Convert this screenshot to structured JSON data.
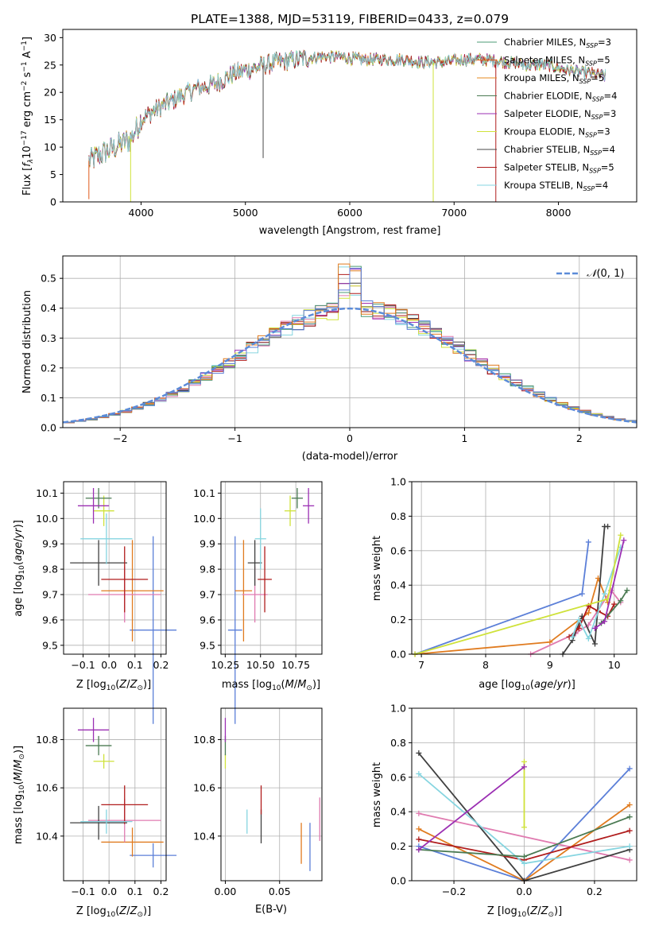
{
  "figure_title": "PLATE=1388, MJD=53119, FIBERID=0433, z=0.079",
  "model_colors": [
    "#4c9b74",
    "#e05a1a",
    "#e58a1f",
    "#4a7a52",
    "#9b2fb3",
    "#cfe23a",
    "#4a4a4a",
    "#b01c1c",
    "#86d5e0"
  ],
  "chart_data": [
    {
      "id": "spectrum",
      "type": "line",
      "title": "PLATE=1388, MJD=53119, FIBERID=0433, z=0.079",
      "xlabel": "wavelength [Angstrom, rest frame]",
      "ylabel": "Flux [f_λ 10^-17 erg cm^-2 s^-1 A^-1]",
      "xlim": [
        3250,
        8750
      ],
      "ylim": [
        0,
        31.5
      ],
      "xticks": [
        4000,
        5000,
        6000,
        7000,
        8000
      ],
      "yticks": [
        0,
        5,
        10,
        15,
        20,
        25,
        30
      ],
      "legend_position": "top-right",
      "grid": false,
      "anchors_x": [
        3500,
        3650,
        3800,
        3900,
        4000,
        4150,
        4300,
        4500,
        4700,
        4900,
        5100,
        5300,
        5500,
        5700,
        5900,
        6100,
        6300,
        6500,
        6700,
        6900,
        7100,
        7300,
        7500,
        7700,
        7900,
        8100,
        8300,
        8450
      ],
      "anchors_y": [
        7.5,
        9.0,
        10.5,
        11.5,
        15.0,
        17.0,
        18.5,
        20.5,
        21.5,
        23.5,
        24.5,
        25.5,
        26.0,
        26.5,
        26.5,
        26.0,
        26.0,
        26.0,
        25.5,
        25.5,
        26.0,
        26.0,
        25.5,
        25.0,
        25.0,
        24.0,
        23.5,
        23.0
      ],
      "series": [
        {
          "name": "Chabrier MILES, N_SSP=3"
        },
        {
          "name": "Salpeter MILES, N_SSP=5"
        },
        {
          "name": "Kroupa MILES, N_SSP=5"
        },
        {
          "name": "Chabrier ELODIE, N_SSP=4"
        },
        {
          "name": "Salpeter ELODIE, N_SSP=3"
        },
        {
          "name": "Kroupa ELODIE, N_SSP=3"
        },
        {
          "name": "Chabrier STELIB, N_SSP=4"
        },
        {
          "name": "Salpeter STELIB, N_SSP=5"
        },
        {
          "name": "Kroupa STELIB, N_SSP=4"
        }
      ],
      "legend_entries": [
        {
          "pre": "Chabrier MILES, N",
          "sub": "SSP",
          "post": "=3"
        },
        {
          "pre": "Salpeter MILES, N",
          "sub": "SSP",
          "post": "=5"
        },
        {
          "pre": "Kroupa MILES, N",
          "sub": "SSP",
          "post": "=5"
        },
        {
          "pre": "Chabrier ELODIE, N",
          "sub": "SSP",
          "post": "=4"
        },
        {
          "pre": "Salpeter ELODIE, N",
          "sub": "SSP",
          "post": "=3"
        },
        {
          "pre": "Kroupa ELODIE, N",
          "sub": "SSP",
          "post": "=3"
        },
        {
          "pre": "Chabrier STELIB, N",
          "sub": "SSP",
          "post": "=4"
        },
        {
          "pre": "Salpeter STELIB, N",
          "sub": "SSP",
          "post": "=5"
        },
        {
          "pre": "Kroupa STELIB, N",
          "sub": "SSP",
          "post": "=4"
        }
      ]
    },
    {
      "id": "residuals",
      "type": "bar",
      "xlabel": "(data-model)/error",
      "ylabel": "Normed distribution",
      "xlim": [
        -2.5,
        2.5
      ],
      "ylim": [
        0,
        0.575
      ],
      "xticks": [
        -2,
        -1,
        0,
        1,
        2
      ],
      "yticks": [
        0.0,
        0.1,
        0.2,
        0.3,
        0.4,
        0.5
      ],
      "grid": true,
      "legend_position": "top-right",
      "bin_width": 0.1,
      "reference_curve": {
        "name": "N(0,1)",
        "mean": 0,
        "sigma": 1
      }
    },
    {
      "id": "age-vs-Z",
      "type": "scatter",
      "xlabel": "Z [log10(Z/Z☉)]",
      "ylabel": "age [log10(age/yr)]",
      "xlim": [
        -0.175,
        0.22
      ],
      "ylim": [
        9.465,
        10.145
      ],
      "xticks": [
        -0.1,
        0.0,
        0.1,
        0.2
      ],
      "xtick_labels": [
        "−0.1",
        "0.0",
        "0.1",
        "0.2"
      ],
      "yticks": [
        9.5,
        9.6,
        9.7,
        9.8,
        9.9,
        10.0,
        10.1
      ],
      "points": [
        {
          "x": 0.17,
          "y": 9.56,
          "xerr": 0.09,
          "yerr": 0.37,
          "c": "#5b7fd8"
        },
        {
          "x": 0.09,
          "y": 9.715,
          "xerr": 0.12,
          "yerr": 0.2,
          "c": "#e07b1f"
        },
        {
          "x": 0.06,
          "y": 9.7,
          "xerr": 0.14,
          "yerr": 0.11,
          "c": "#e07bb0"
        },
        {
          "x": -0.04,
          "y": 9.825,
          "xerr": 0.11,
          "yerr": 0.09,
          "c": "#404040"
        },
        {
          "x": 0.06,
          "y": 9.76,
          "xerr": 0.09,
          "yerr": 0.13,
          "c": "#b01c1c"
        },
        {
          "x": -0.01,
          "y": 9.92,
          "xerr": 0.1,
          "yerr": 0.1,
          "c": "#86d5e0"
        },
        {
          "x": -0.02,
          "y": 10.03,
          "xerr": 0.04,
          "yerr": 0.06,
          "c": "#cfe23a"
        },
        {
          "x": -0.04,
          "y": 10.08,
          "xerr": 0.05,
          "yerr": 0.04,
          "c": "#4a7a52"
        },
        {
          "x": -0.06,
          "y": 10.05,
          "xerr": 0.06,
          "yerr": 0.07,
          "c": "#9b2fb3"
        }
      ]
    },
    {
      "id": "age-vs-mass",
      "type": "scatter",
      "xlabel": "mass [log10(M/M☉)]",
      "xlim": [
        10.22,
        10.935
      ],
      "ylim": [
        9.465,
        10.145
      ],
      "xticks": [
        10.25,
        10.5,
        10.75
      ],
      "xtick_labels": [
        "10.25",
        "10.50",
        "10.75"
      ],
      "yticks": [
        9.5,
        9.6,
        9.7,
        9.8,
        9.9,
        10.0,
        10.1
      ],
      "points": [
        {
          "x": 10.32,
          "y": 9.56,
          "xerr": 0.05,
          "yerr": 0.37,
          "c": "#5b7fd8"
        },
        {
          "x": 10.38,
          "y": 9.715,
          "xerr": 0.06,
          "yerr": 0.2,
          "c": "#e07b1f"
        },
        {
          "x": 10.46,
          "y": 9.7,
          "xerr": 0.09,
          "yerr": 0.11,
          "c": "#e07bb0"
        },
        {
          "x": 10.46,
          "y": 9.825,
          "xerr": 0.05,
          "yerr": 0.09,
          "c": "#404040"
        },
        {
          "x": 10.53,
          "y": 9.76,
          "xerr": 0.05,
          "yerr": 0.13,
          "c": "#b01c1c"
        },
        {
          "x": 10.5,
          "y": 9.92,
          "xerr": 0.04,
          "yerr": 0.12,
          "c": "#86d5e0"
        },
        {
          "x": 10.71,
          "y": 10.03,
          "xerr": 0.04,
          "yerr": 0.06,
          "c": "#cfe23a"
        },
        {
          "x": 10.76,
          "y": 10.08,
          "xerr": 0.04,
          "yerr": 0.04,
          "c": "#4a7a52"
        },
        {
          "x": 10.84,
          "y": 10.05,
          "xerr": 0.04,
          "yerr": 0.07,
          "c": "#9b2fb3"
        }
      ]
    },
    {
      "id": "weight-vs-age",
      "type": "line",
      "xlabel": "age [log10(age/yr)]",
      "ylabel": "mass weight",
      "xlim": [
        6.85,
        10.35
      ],
      "ylim": [
        0,
        1
      ],
      "xticks": [
        7,
        8,
        9,
        10
      ],
      "yticks": [
        0.0,
        0.2,
        0.4,
        0.6,
        0.8,
        1.0
      ],
      "yticklabels": [
        "0.0",
        "0.2",
        "0.4",
        "0.6",
        "0.8",
        "1.0"
      ],
      "grid": true,
      "series": [
        {
          "c": "#5b7fd8",
          "x": [
            6.9,
            9.5,
            9.6
          ],
          "y": [
            0.0,
            0.35,
            0.65
          ]
        },
        {
          "c": "#e07b1f",
          "x": [
            6.9,
            9.0,
            9.6,
            9.75,
            9.9
          ],
          "y": [
            0.0,
            0.07,
            0.24,
            0.44,
            0.3
          ]
        },
        {
          "c": "#e07bb0",
          "x": [
            8.7,
            9.4,
            9.6,
            9.95,
            10.1
          ],
          "y": [
            0.0,
            0.12,
            0.17,
            0.37,
            0.3
          ]
        },
        {
          "c": "#404040",
          "x": [
            9.2,
            9.35,
            9.5,
            9.7,
            9.85,
            9.9
          ],
          "y": [
            0.0,
            0.08,
            0.22,
            0.06,
            0.74,
            0.74
          ]
        },
        {
          "c": "#b01c1c",
          "x": [
            9.3,
            9.45,
            9.6,
            9.75,
            9.9,
            10.0
          ],
          "y": [
            0.1,
            0.15,
            0.28,
            0.25,
            0.22,
            0.29
          ]
        },
        {
          "c": "#86d5e0",
          "x": [
            9.35,
            9.45,
            9.6,
            9.85,
            10.1
          ],
          "y": [
            0.1,
            0.2,
            0.09,
            0.35,
            0.62
          ]
        },
        {
          "c": "#cfe23a",
          "x": [
            6.9,
            9.9,
            10.1
          ],
          "y": [
            0.0,
            0.32,
            0.69
          ]
        },
        {
          "c": "#4a7a52",
          "x": [
            9.8,
            10.1,
            10.2
          ],
          "y": [
            0.18,
            0.31,
            0.37
          ]
        },
        {
          "c": "#9b2fb3",
          "x": [
            9.7,
            9.85,
            10.15
          ],
          "y": [
            0.15,
            0.19,
            0.66
          ]
        }
      ]
    },
    {
      "id": "mass-vs-Z",
      "type": "scatter",
      "xlabel": "Z [log10(Z/Z☉)]",
      "ylabel": "mass [log10(M/M☉)]",
      "xlim": [
        -0.175,
        0.22
      ],
      "ylim": [
        10.215,
        10.93
      ],
      "xticks": [
        -0.1,
        0.0,
        0.1,
        0.2
      ],
      "xtick_labels": [
        "−0.1",
        "0.0",
        "0.1",
        "0.2"
      ],
      "yticks": [
        10.4,
        10.6,
        10.8
      ],
      "points": [
        {
          "x": 0.17,
          "y": 10.32,
          "xerr": 0.09,
          "yerr": 0.05,
          "c": "#5b7fd8"
        },
        {
          "x": 0.09,
          "y": 10.375,
          "xerr": 0.12,
          "yerr": 0.06,
          "c": "#e07b1f"
        },
        {
          "x": 0.06,
          "y": 10.465,
          "xerr": 0.14,
          "yerr": 0.09,
          "c": "#e07bb0"
        },
        {
          "x": -0.04,
          "y": 10.455,
          "xerr": 0.11,
          "yerr": 0.07,
          "c": "#404040"
        },
        {
          "x": 0.06,
          "y": 10.53,
          "xerr": 0.09,
          "yerr": 0.08,
          "c": "#b01c1c"
        },
        {
          "x": -0.01,
          "y": 10.46,
          "xerr": 0.1,
          "yerr": 0.05,
          "c": "#86d5e0"
        },
        {
          "x": -0.02,
          "y": 10.71,
          "xerr": 0.04,
          "yerr": 0.03,
          "c": "#cfe23a"
        },
        {
          "x": -0.04,
          "y": 10.775,
          "xerr": 0.05,
          "yerr": 0.04,
          "c": "#4a7a52"
        },
        {
          "x": -0.06,
          "y": 10.84,
          "xerr": 0.06,
          "yerr": 0.05,
          "c": "#9b2fb3"
        }
      ]
    },
    {
      "id": "mass-vs-EBV",
      "type": "scatter",
      "xlabel": "E(B-V)",
      "xlim": [
        -0.004,
        0.089
      ],
      "ylim": [
        10.215,
        10.93
      ],
      "xticks": [
        0.0,
        0.05
      ],
      "xtick_labels": [
        "0.00",
        "0.05"
      ],
      "yticks": [
        10.4,
        10.6,
        10.8
      ],
      "points": [
        {
          "x": 0.078,
          "y": 10.355,
          "yerr": 0.1,
          "c": "#5b7fd8"
        },
        {
          "x": 0.07,
          "y": 10.37,
          "yerr": 0.085,
          "c": "#e07b1f"
        },
        {
          "x": 0.087,
          "y": 10.47,
          "yerr": 0.09,
          "c": "#e07bb0"
        },
        {
          "x": 0.033,
          "y": 10.44,
          "yerr": 0.07,
          "c": "#404040"
        },
        {
          "x": 0.033,
          "y": 10.55,
          "yerr": 0.06,
          "c": "#b01c1c"
        },
        {
          "x": 0.02,
          "y": 10.46,
          "yerr": 0.05,
          "c": "#86d5e0"
        },
        {
          "x": 0.0,
          "y": 10.71,
          "yerr": 0.03,
          "c": "#cfe23a"
        },
        {
          "x": 0.0,
          "y": 10.775,
          "yerr": 0.04,
          "c": "#4a7a52"
        },
        {
          "x": 0.0,
          "y": 10.84,
          "yerr": 0.05,
          "c": "#9b2fb3"
        }
      ]
    },
    {
      "id": "weight-vs-Z",
      "type": "line",
      "xlabel": "Z [log10(Z/Z☉)]",
      "ylabel": "mass weight",
      "xlim": [
        -0.32,
        0.32
      ],
      "ylim": [
        0,
        1
      ],
      "xticks": [
        -0.2,
        0.0,
        0.2
      ],
      "xtick_labels": [
        "−0.2",
        "0.0",
        "0.2"
      ],
      "yticks": [
        0.0,
        0.2,
        0.4,
        0.6,
        0.8,
        1.0
      ],
      "yticklabels": [
        "0.0",
        "0.2",
        "0.4",
        "0.6",
        "0.8",
        "1.0"
      ],
      "grid": true,
      "series": [
        {
          "c": "#5b7fd8",
          "x": [
            -0.3,
            0.0,
            0.3
          ],
          "y": [
            0.2,
            0.0,
            0.65
          ]
        },
        {
          "c": "#e07b1f",
          "x": [
            -0.3,
            0.0,
            0.3
          ],
          "y": [
            0.3,
            0.0,
            0.44
          ]
        },
        {
          "c": "#e07bb0",
          "x": [
            -0.3,
            0.3
          ],
          "y": [
            0.39,
            0.12
          ]
        },
        {
          "c": "#404040",
          "x": [
            -0.3,
            0.0,
            0.3
          ],
          "y": [
            0.74,
            0.0,
            0.18
          ]
        },
        {
          "c": "#b01c1c",
          "x": [
            -0.3,
            0.0,
            0.3
          ],
          "y": [
            0.24,
            0.12,
            0.29
          ]
        },
        {
          "c": "#86d5e0",
          "x": [
            -0.3,
            0.0,
            0.3
          ],
          "y": [
            0.62,
            0.1,
            0.2
          ]
        },
        {
          "c": "#cfe23a",
          "x": [
            0.0,
            0.0
          ],
          "y": [
            0.31,
            0.69
          ]
        },
        {
          "c": "#4a7a52",
          "x": [
            -0.3,
            0.0,
            0.3
          ],
          "y": [
            0.18,
            0.14,
            0.37
          ]
        },
        {
          "c": "#9b2fb3",
          "x": [
            -0.3,
            0.0
          ],
          "y": [
            0.18,
            0.66
          ]
        }
      ]
    }
  ]
}
